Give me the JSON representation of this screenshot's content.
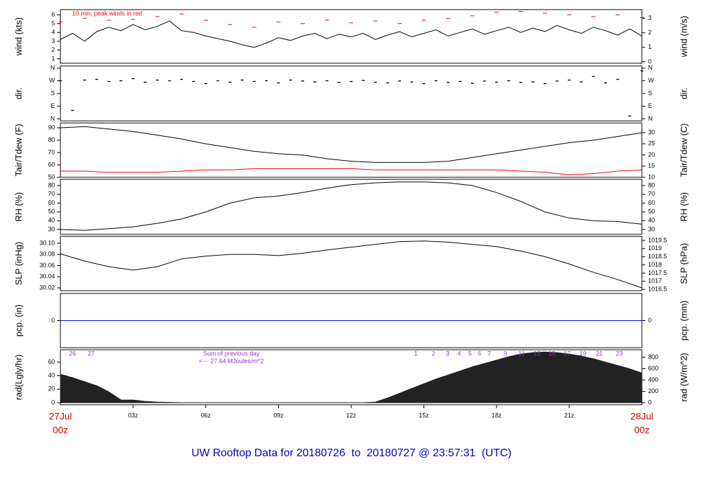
{
  "page_title": "UW Rooftop Data for 20180726  to  20180727 @ 23:57:31  (UTC)",
  "x_start": [
    "27Jul",
    "00z"
  ],
  "x_end": [
    "28Jul",
    "00z"
  ],
  "chart_data": [
    {
      "type": "line",
      "ylabel": "wind (kts)",
      "y2label": "wind (m/s)",
      "annotation": "10 min. peak winds in red",
      "xlim": [
        0,
        24
      ],
      "ylim": [
        0.5,
        6.6
      ],
      "yticks": [
        1,
        2,
        3,
        4,
        5,
        6
      ],
      "y2lim": [
        -0.1,
        3.6
      ],
      "y2ticks": [
        0,
        1,
        2,
        3
      ],
      "series": [
        {
          "style": "line",
          "color": "#000000",
          "x": [
            0,
            0.5,
            1,
            1.5,
            2,
            2.5,
            3,
            3.5,
            4,
            4.5,
            5,
            5.5,
            6,
            6.5,
            7,
            7.5,
            8,
            8.5,
            9,
            9.5,
            10,
            10.5,
            11,
            11.5,
            12,
            12.5,
            13,
            13.5,
            14,
            14.5,
            15,
            15.5,
            16,
            16.5,
            17,
            17.5,
            18,
            18.5,
            19,
            19.5,
            20,
            20.5,
            21,
            21.5,
            22,
            22.5,
            23,
            23.5,
            24
          ],
          "values": [
            3.2,
            3.9,
            3.0,
            4.1,
            4.6,
            4.2,
            4.9,
            4.3,
            4.7,
            5.3,
            4.2,
            4.0,
            3.6,
            3.3,
            3.0,
            2.6,
            2.3,
            2.8,
            3.4,
            3.1,
            3.6,
            3.9,
            3.3,
            3.8,
            3.5,
            3.9,
            3.2,
            3.7,
            4.1,
            3.5,
            3.9,
            4.3,
            3.6,
            4.0,
            4.4,
            3.8,
            4.2,
            4.6,
            4.0,
            4.5,
            4.1,
            4.8,
            4.3,
            3.9,
            4.6,
            4.2,
            3.7,
            4.4,
            3.6
          ]
        },
        {
          "style": "dash",
          "color": "#ff0000",
          "x": [
            0,
            1,
            2,
            3,
            4,
            5,
            6,
            7,
            8,
            9,
            10,
            11,
            12,
            13,
            14,
            15,
            16,
            17,
            18,
            19,
            20,
            21,
            22,
            23,
            24
          ],
          "values": [
            5.2,
            5.6,
            5.4,
            5.5,
            5.8,
            6.1,
            5.4,
            4.9,
            4.6,
            5.2,
            5.0,
            5.4,
            5.1,
            5.3,
            5.0,
            5.4,
            5.6,
            5.9,
            6.3,
            6.4,
            6.2,
            6.0,
            5.8,
            6.0,
            5.7
          ]
        }
      ]
    },
    {
      "type": "scatter",
      "ylabel": "dir.",
      "y2label": "dir.",
      "xlim": [
        0,
        24
      ],
      "ylim": [
        -15,
        375
      ],
      "yticks": [
        {
          "value": 0,
          "label": "N"
        },
        {
          "value": 90,
          "label": "E"
        },
        {
          "value": 180,
          "label": "S"
        },
        {
          "value": 270,
          "label": "W"
        },
        {
          "value": 360,
          "label": "N"
        }
      ],
      "y2lim": [
        -15,
        375
      ],
      "y2ticks": [
        {
          "value": 0,
          "label": "N"
        },
        {
          "value": 90,
          "label": "E"
        },
        {
          "value": 180,
          "label": "S"
        },
        {
          "value": 270,
          "label": "W"
        },
        {
          "value": 360,
          "label": "N"
        }
      ],
      "series": [
        {
          "style": "point",
          "color": "#000000",
          "x": [
            0,
            0.5,
            1,
            1.5,
            2,
            2.5,
            3,
            3.5,
            4,
            4.5,
            5,
            5.5,
            6,
            6.5,
            7,
            7.5,
            8,
            8.5,
            9,
            9.5,
            10,
            10.5,
            11,
            11.5,
            12,
            12.5,
            13,
            13.5,
            14,
            14.5,
            15,
            15.5,
            16,
            16.5,
            17,
            17.5,
            18,
            18.5,
            19,
            19.5,
            20,
            20.5,
            21,
            21.5,
            22,
            22.5,
            23,
            23.5,
            24
          ],
          "values": [
            270,
            60,
            275,
            280,
            265,
            270,
            285,
            260,
            275,
            270,
            280,
            265,
            250,
            270,
            260,
            275,
            265,
            270,
            255,
            275,
            268,
            262,
            270,
            258,
            265,
            272,
            260,
            255,
            268,
            262,
            250,
            270,
            258,
            265,
            252,
            268,
            260,
            270,
            258,
            262,
            250,
            268,
            275,
            262,
            300,
            255,
            280,
            20,
            340
          ]
        }
      ]
    },
    {
      "type": "line",
      "ylabel": "Tair/Tdew (F)",
      "y2label": "Tair/Tdew (C)",
      "xlim": [
        0,
        24
      ],
      "ylim": [
        50,
        93.9
      ],
      "yticks": [
        50,
        60,
        70,
        80,
        90
      ],
      "y2lim": [
        10,
        34.3
      ],
      "y2ticks": [
        10,
        15,
        20,
        25,
        30
      ],
      "series": [
        {
          "style": "line",
          "color": "#000000",
          "x": [
            0,
            1,
            2,
            3,
            4,
            5,
            6,
            7,
            8,
            9,
            10,
            11,
            12,
            13,
            14,
            15,
            16,
            17,
            18,
            19,
            20,
            21,
            22,
            23,
            24
          ],
          "values": [
            90,
            91,
            89,
            87,
            84,
            81,
            77,
            74,
            71,
            69,
            68,
            65,
            63,
            62,
            62,
            62,
            63,
            66,
            69,
            72,
            75,
            78,
            80,
            83,
            86
          ]
        },
        {
          "style": "line",
          "color": "#ff0000",
          "x": [
            0,
            1,
            2,
            3,
            4,
            5,
            6,
            7,
            8,
            9,
            10,
            11,
            12,
            13,
            14,
            15,
            16,
            17,
            18,
            19,
            20,
            21,
            22,
            23,
            24
          ],
          "values": [
            55,
            55,
            54,
            54,
            54,
            55,
            56,
            56,
            57,
            57,
            57,
            57,
            57,
            56,
            56,
            56,
            56,
            56,
            56,
            55,
            54,
            52,
            53,
            55,
            56
          ]
        }
      ]
    },
    {
      "type": "line",
      "ylabel": "RH (%)",
      "y2label": "RH (%)",
      "xlim": [
        0,
        24
      ],
      "ylim": [
        24.5,
        87
      ],
      "yticks": [
        30,
        40,
        50,
        60,
        70,
        80
      ],
      "y2lim": [
        24.5,
        87
      ],
      "y2ticks": [
        30,
        40,
        50,
        60,
        70,
        80
      ],
      "series": [
        {
          "style": "line",
          "color": "#000000",
          "x": [
            0,
            1,
            2,
            3,
            4,
            5,
            6,
            7,
            8,
            9,
            10,
            11,
            12,
            13,
            14,
            15,
            16,
            17,
            18,
            19,
            20,
            21,
            22,
            23,
            24
          ],
          "values": [
            30,
            29,
            31,
            33,
            37,
            42,
            50,
            60,
            66,
            68,
            72,
            77,
            81,
            83,
            84,
            84,
            83,
            80,
            72,
            62,
            50,
            43,
            40,
            39,
            36
          ]
        }
      ]
    },
    {
      "type": "line",
      "ylabel": "SLP (inHg)",
      "y2label": "SLP (hPa)",
      "xlim": [
        0,
        24
      ],
      "ylim": [
        30.0151,
        30.1123
      ],
      "yticks": [
        {
          "value": 30.02,
          "label": "30.02"
        },
        {
          "value": 30.04,
          "label": "30.04"
        },
        {
          "value": 30.06,
          "label": "30.06"
        },
        {
          "value": 30.08,
          "label": "30.08"
        },
        {
          "value": 30.1,
          "label": "30.10"
        }
      ],
      "y2lim": [
        1016.42,
        1019.75
      ],
      "y2ticks": [
        1016.5,
        1017,
        1017.5,
        1018,
        1018.5,
        1019,
        1019.5
      ],
      "series": [
        {
          "style": "line",
          "color": "#000000",
          "x": [
            0,
            1,
            2,
            3,
            4,
            5,
            6,
            7,
            8,
            9,
            10,
            11,
            12,
            13,
            14,
            15,
            16,
            17,
            18,
            19,
            20,
            21,
            22,
            23,
            24
          ],
          "values": [
            30.081,
            30.068,
            30.058,
            30.052,
            30.058,
            30.072,
            30.077,
            30.08,
            30.08,
            30.078,
            30.082,
            30.088,
            30.093,
            30.098,
            30.103,
            30.104,
            30.102,
            30.098,
            30.094,
            30.086,
            30.076,
            30.063,
            30.048,
            30.035,
            30.02
          ]
        }
      ]
    },
    {
      "type": "line",
      "ylabel": "pcp. (in)",
      "y2label": "pcp. (mm)",
      "xlim": [
        0,
        24
      ],
      "ylim": [
        -1,
        1
      ],
      "yticks": [
        0
      ],
      "y2lim": [
        -1,
        1
      ],
      "y2ticks": [
        0
      ],
      "series": [
        {
          "style": "line",
          "color": "#0000ff",
          "x": [
            0,
            24
          ],
          "values": [
            0,
            0
          ]
        }
      ]
    },
    {
      "type": "area",
      "ylabel": "rad(Lgly/hr)",
      "y2label": "rad (W/m^2)",
      "xlim": [
        0,
        24
      ],
      "ylim": [
        -3,
        78.3
      ],
      "yticks": [
        0,
        20,
        40,
        60
      ],
      "y2lim": [
        -36,
        933
      ],
      "y2ticks": [
        0,
        200,
        400,
        600,
        800
      ],
      "xticks": [
        {
          "value": 3,
          "label": "03z"
        },
        {
          "value": 6,
          "label": "06z"
        },
        {
          "value": 9,
          "label": "09z"
        },
        {
          "value": 12,
          "label": "12z"
        },
        {
          "value": 15,
          "label": "15z"
        },
        {
          "value": 18,
          "label": "18z"
        },
        {
          "value": 21,
          "label": "21z"
        }
      ],
      "notes": [
        "Sum of previous day",
        "<--- 27.64 MJoules/m^2"
      ],
      "hour_labels": [
        {
          "x": 0.5,
          "text": "26"
        },
        {
          "x": 1.27,
          "text": "27"
        },
        {
          "x": 14.67,
          "text": "1"
        },
        {
          "x": 15.4,
          "text": "2"
        },
        {
          "x": 15.98,
          "text": "3"
        },
        {
          "x": 16.46,
          "text": "4"
        },
        {
          "x": 16.9,
          "text": "5"
        },
        {
          "x": 17.3,
          "text": "6"
        },
        {
          "x": 17.7,
          "text": "7"
        },
        {
          "x": 18.36,
          "text": "9"
        },
        {
          "x": 19.04,
          "text": "11"
        },
        {
          "x": 19.67,
          "text": "13"
        },
        {
          "x": 20.29,
          "text": "15"
        },
        {
          "x": 20.91,
          "text": "17"
        },
        {
          "x": 21.56,
          "text": "19"
        },
        {
          "x": 22.24,
          "text": "21"
        },
        {
          "x": 23.07,
          "text": "23"
        }
      ],
      "series": [
        {
          "style": "area",
          "color": "#222222",
          "x": [
            0,
            0.5,
            1,
            1.5,
            2,
            2.5,
            3,
            3.5,
            4,
            4.5,
            5,
            5.5,
            6,
            6.5,
            7,
            7.5,
            8,
            8.5,
            9,
            9.5,
            10,
            10.5,
            11,
            11.5,
            12,
            12.5,
            13,
            13.5,
            14,
            14.5,
            15,
            15.5,
            16,
            16.5,
            17,
            17.5,
            18,
            18.5,
            19,
            19.5,
            20,
            20.5,
            21,
            21.5,
            22,
            22.5,
            23,
            23.5,
            24
          ],
          "values": [
            42,
            37,
            31,
            25,
            16,
            4,
            4,
            2,
            1,
            0.5,
            0,
            0,
            0,
            0,
            0,
            0,
            0,
            0,
            0,
            0,
            0,
            0,
            0,
            0,
            0,
            0,
            1,
            7,
            14,
            21,
            28,
            35,
            41,
            47,
            53,
            58,
            63,
            68,
            72,
            74,
            75,
            74,
            72,
            69,
            65,
            60,
            55,
            50,
            44
          ]
        }
      ]
    }
  ]
}
